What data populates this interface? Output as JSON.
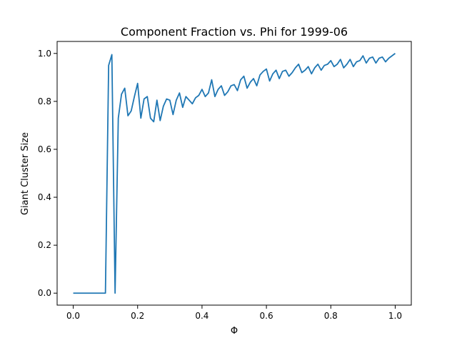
{
  "chart_data": {
    "type": "line",
    "title": "Component Fraction vs. Phi for 1999-06",
    "xlabel": "Φ",
    "ylabel": "Giant Cluster Size",
    "xlim": [
      -0.05,
      1.05
    ],
    "ylim": [
      -0.05,
      1.05
    ],
    "xticks": [
      0.0,
      0.2,
      0.4,
      0.6,
      0.8,
      1.0
    ],
    "xtick_labels": [
      "0.0",
      "0.2",
      "0.4",
      "0.6",
      "0.8",
      "1.0"
    ],
    "yticks": [
      0.0,
      0.2,
      0.4,
      0.6,
      0.8,
      1.0
    ],
    "ytick_labels": [
      "0.0",
      "0.2",
      "0.4",
      "0.6",
      "0.8",
      "1.0"
    ],
    "grid": false,
    "line_color": "#1f77b4",
    "series": [
      {
        "x": [
          0.0,
          0.01,
          0.02,
          0.03,
          0.04,
          0.05,
          0.06,
          0.07,
          0.08,
          0.09,
          0.1,
          0.11,
          0.12,
          0.13,
          0.14,
          0.15,
          0.16,
          0.17,
          0.18,
          0.19,
          0.2,
          0.21,
          0.22,
          0.23,
          0.24,
          0.25,
          0.26,
          0.27,
          0.28,
          0.29,
          0.3,
          0.31,
          0.32,
          0.33,
          0.34,
          0.35,
          0.36,
          0.37,
          0.38,
          0.39,
          0.4,
          0.41,
          0.42,
          0.43,
          0.44,
          0.45,
          0.46,
          0.47,
          0.48,
          0.49,
          0.5,
          0.51,
          0.52,
          0.53,
          0.54,
          0.55,
          0.56,
          0.57,
          0.58,
          0.59,
          0.6,
          0.61,
          0.62,
          0.63,
          0.64,
          0.65,
          0.66,
          0.67,
          0.68,
          0.69,
          0.7,
          0.71,
          0.72,
          0.73,
          0.74,
          0.75,
          0.76,
          0.77,
          0.78,
          0.79,
          0.8,
          0.81,
          0.82,
          0.83,
          0.84,
          0.85,
          0.86,
          0.87,
          0.88,
          0.89,
          0.9,
          0.91,
          0.92,
          0.93,
          0.94,
          0.95,
          0.96,
          0.97,
          0.98,
          0.99,
          1.0
        ],
        "values": [
          0,
          0,
          0,
          0,
          0,
          0,
          0,
          0,
          0,
          0,
          0,
          0.95,
          0.995,
          0,
          0.73,
          0.83,
          0.855,
          0.74,
          0.76,
          0.82,
          0.875,
          0.73,
          0.81,
          0.82,
          0.73,
          0.715,
          0.805,
          0.72,
          0.78,
          0.81,
          0.805,
          0.745,
          0.805,
          0.835,
          0.775,
          0.82,
          0.805,
          0.79,
          0.815,
          0.825,
          0.85,
          0.82,
          0.835,
          0.89,
          0.82,
          0.85,
          0.865,
          0.825,
          0.84,
          0.865,
          0.87,
          0.845,
          0.89,
          0.905,
          0.855,
          0.88,
          0.895,
          0.865,
          0.91,
          0.925,
          0.935,
          0.885,
          0.915,
          0.93,
          0.895,
          0.925,
          0.93,
          0.905,
          0.92,
          0.94,
          0.955,
          0.92,
          0.93,
          0.945,
          0.915,
          0.94,
          0.955,
          0.93,
          0.95,
          0.955,
          0.97,
          0.945,
          0.955,
          0.975,
          0.94,
          0.955,
          0.975,
          0.945,
          0.965,
          0.97,
          0.99,
          0.96,
          0.98,
          0.985,
          0.96,
          0.98,
          0.985,
          0.965,
          0.98,
          0.99,
          1.0
        ]
      }
    ]
  }
}
